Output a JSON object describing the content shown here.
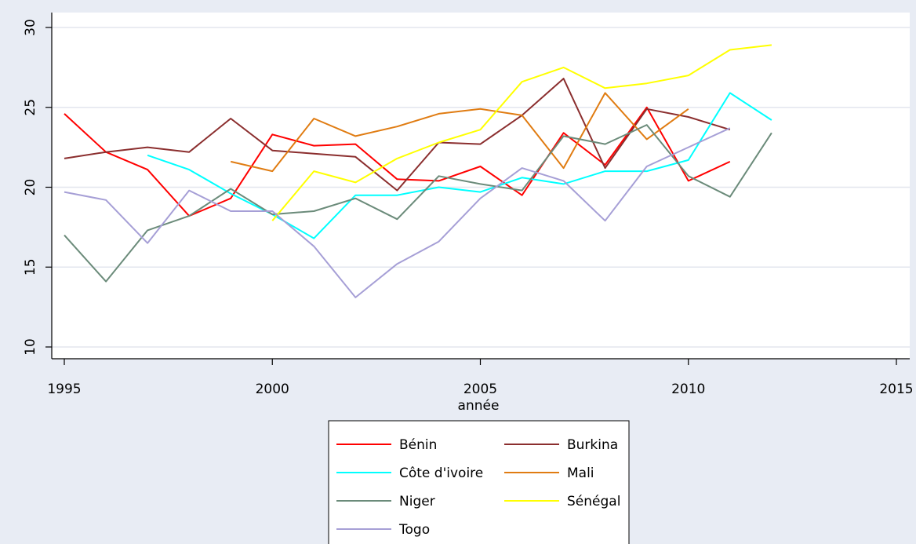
{
  "chart_data": {
    "type": "line",
    "title": "",
    "xlabel": "année",
    "ylabel": "",
    "xlim": [
      1995,
      2015
    ],
    "ylim": [
      10,
      30
    ],
    "xticks": [
      1995,
      2000,
      2005,
      2010,
      2015
    ],
    "yticks": [
      10,
      15,
      20,
      25,
      30
    ],
    "grid": true,
    "legend_position": "bottom",
    "series": [
      {
        "name": "Bénin",
        "color": "#ff0000",
        "points": [
          [
            1995,
            24.6
          ],
          [
            1996,
            22.2
          ],
          [
            1997,
            21.1
          ],
          [
            1998,
            18.2
          ],
          [
            1999,
            19.3
          ],
          [
            2000,
            23.3
          ],
          [
            2001,
            22.6
          ],
          [
            2002,
            22.7
          ],
          [
            2003,
            20.5
          ],
          [
            2004,
            20.4
          ],
          [
            2005,
            21.3
          ],
          [
            2006,
            19.5
          ],
          [
            2007,
            23.4
          ],
          [
            2008,
            21.4
          ],
          [
            2009,
            25.0
          ],
          [
            2010,
            20.4
          ],
          [
            2011,
            21.6
          ]
        ]
      },
      {
        "name": "Burkina",
        "color": "#8b2e2e",
        "points": [
          [
            1995,
            21.8
          ],
          [
            1996,
            22.2
          ],
          [
            1997,
            22.5
          ],
          [
            1998,
            22.2
          ],
          [
            1999,
            24.3
          ],
          [
            2000,
            22.3
          ],
          [
            2001,
            22.1
          ],
          [
            2002,
            21.9
          ],
          [
            2003,
            19.8
          ],
          [
            2004,
            22.8
          ],
          [
            2005,
            22.7
          ],
          [
            2006,
            24.5
          ],
          [
            2007,
            26.8
          ],
          [
            2008,
            21.2
          ],
          [
            2009,
            24.9
          ],
          [
            2010,
            24.4
          ],
          [
            2011,
            23.6
          ]
        ]
      },
      {
        "name": "Côte d'ivoire",
        "color": "#00ffff",
        "points": [
          [
            1997,
            22.0
          ],
          [
            1998,
            21.1
          ],
          [
            1999,
            19.6
          ],
          [
            2000,
            18.3
          ],
          [
            2001,
            16.8
          ],
          [
            2002,
            19.5
          ],
          [
            2003,
            19.5
          ],
          [
            2004,
            20.0
          ],
          [
            2005,
            19.7
          ],
          [
            2006,
            20.6
          ],
          [
            2007,
            20.2
          ],
          [
            2008,
            21.0
          ],
          [
            2009,
            21.0
          ],
          [
            2010,
            21.7
          ],
          [
            2011,
            25.9
          ],
          [
            2012,
            24.2
          ]
        ]
      },
      {
        "name": "Mali",
        "color": "#e07c12",
        "points": [
          [
            1999,
            21.6
          ],
          [
            2000,
            21.0
          ],
          [
            2001,
            24.3
          ],
          [
            2002,
            23.2
          ],
          [
            2003,
            23.8
          ],
          [
            2004,
            24.6
          ],
          [
            2005,
            24.9
          ],
          [
            2006,
            24.5
          ],
          [
            2007,
            21.2
          ],
          [
            2008,
            25.9
          ],
          [
            2009,
            23.0
          ],
          [
            2010,
            24.9
          ]
        ]
      },
      {
        "name": "Niger",
        "color": "#6b8b7a",
        "points": [
          [
            1995,
            17.0
          ],
          [
            1996,
            14.1
          ],
          [
            1997,
            17.3
          ],
          [
            1998,
            18.2
          ],
          [
            1999,
            19.9
          ],
          [
            2000,
            18.3
          ],
          [
            2001,
            18.5
          ],
          [
            2002,
            19.3
          ],
          [
            2003,
            18.0
          ],
          [
            2004,
            20.7
          ],
          [
            2005,
            20.2
          ],
          [
            2006,
            19.8
          ],
          [
            2007,
            23.2
          ],
          [
            2008,
            22.7
          ],
          [
            2009,
            23.9
          ],
          [
            2010,
            20.7
          ],
          [
            2011,
            19.4
          ],
          [
            2012,
            23.4
          ]
        ]
      },
      {
        "name": "Sénégal",
        "color": "#ffff00",
        "points": [
          [
            2000,
            17.9
          ],
          [
            2001,
            21.0
          ],
          [
            2002,
            20.3
          ],
          [
            2003,
            21.8
          ],
          [
            2004,
            22.8
          ],
          [
            2005,
            23.6
          ],
          [
            2006,
            26.6
          ],
          [
            2007,
            27.5
          ],
          [
            2008,
            26.2
          ],
          [
            2009,
            26.5
          ],
          [
            2010,
            27.0
          ],
          [
            2011,
            28.6
          ],
          [
            2012,
            28.9
          ]
        ]
      },
      {
        "name": "Togo",
        "color": "#a69fd6",
        "points": [
          [
            1995,
            19.7
          ],
          [
            1996,
            19.2
          ],
          [
            1997,
            16.5
          ],
          [
            1998,
            19.8
          ],
          [
            1999,
            18.5
          ],
          [
            2000,
            18.5
          ],
          [
            2001,
            16.3
          ],
          [
            2002,
            13.1
          ],
          [
            2003,
            15.2
          ],
          [
            2004,
            16.6
          ],
          [
            2005,
            19.3
          ],
          [
            2006,
            21.2
          ],
          [
            2007,
            20.4
          ],
          [
            2008,
            17.9
          ],
          [
            2009,
            21.3
          ],
          [
            2010,
            22.5
          ],
          [
            2011,
            23.7
          ]
        ]
      }
    ]
  }
}
